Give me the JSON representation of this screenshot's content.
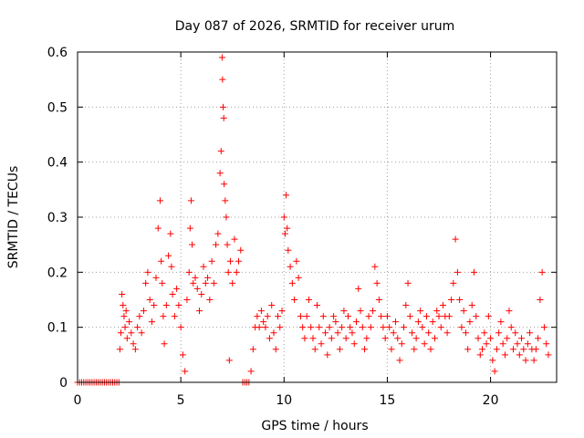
{
  "chart_data": {
    "type": "scatter",
    "title": "Day 087 of 2026, SRMTID for receiver urum",
    "xlabel": "GPS time / hours",
    "ylabel": "SRMTID / TECUs",
    "xlim": [
      0,
      23.2
    ],
    "ylim": [
      0,
      0.6
    ],
    "xticks": [
      0,
      5,
      10,
      15,
      20
    ],
    "yticks": [
      0,
      0.1,
      0.2,
      0.3,
      0.4,
      0.5,
      0.6
    ],
    "xtick_labels": [
      "0",
      "5",
      "10",
      "15",
      "20"
    ],
    "ytick_labels": [
      "0",
      "0.1",
      "0.2",
      "0.3",
      "0.4",
      "0.5",
      "0.6"
    ],
    "grid": true,
    "marker": "plus",
    "color": "#ff0000",
    "series": [
      {
        "name": "SRMTID",
        "x": [
          0.0,
          0.1,
          0.2,
          0.3,
          0.4,
          0.5,
          0.6,
          0.7,
          0.8,
          0.9,
          1.0,
          1.1,
          1.2,
          1.3,
          1.4,
          1.5,
          1.6,
          1.7,
          1.8,
          1.9,
          2.0,
          2.05,
          2.1,
          2.15,
          2.2,
          2.25,
          2.3,
          2.35,
          2.4,
          2.5,
          2.6,
          2.7,
          2.8,
          2.9,
          3.0,
          3.1,
          3.2,
          3.3,
          3.4,
          3.5,
          3.6,
          3.7,
          3.8,
          3.9,
          4.0,
          4.05,
          4.1,
          4.15,
          4.2,
          4.3,
          4.4,
          4.5,
          4.55,
          4.6,
          4.7,
          4.8,
          4.9,
          5.0,
          5.1,
          5.2,
          5.3,
          5.4,
          5.45,
          5.5,
          5.55,
          5.6,
          5.7,
          5.8,
          5.9,
          6.0,
          6.1,
          6.2,
          6.3,
          6.4,
          6.5,
          6.6,
          6.7,
          6.8,
          6.9,
          6.95,
          7.0,
          7.02,
          7.05,
          7.08,
          7.1,
          7.15,
          7.2,
          7.25,
          7.3,
          7.35,
          7.4,
          7.5,
          7.6,
          7.7,
          7.8,
          7.9,
          8.0,
          8.1,
          8.2,
          8.3,
          8.4,
          8.5,
          8.6,
          8.7,
          8.8,
          8.9,
          9.0,
          9.1,
          9.2,
          9.3,
          9.4,
          9.5,
          9.6,
          9.7,
          9.8,
          9.9,
          10.0,
          10.05,
          10.1,
          10.15,
          10.2,
          10.3,
          10.4,
          10.5,
          10.6,
          10.7,
          10.8,
          10.9,
          11.0,
          11.1,
          11.2,
          11.3,
          11.4,
          11.5,
          11.6,
          11.7,
          11.8,
          11.9,
          12.0,
          12.1,
          12.2,
          12.3,
          12.4,
          12.5,
          12.6,
          12.7,
          12.8,
          12.9,
          13.0,
          13.1,
          13.2,
          13.3,
          13.4,
          13.5,
          13.6,
          13.7,
          13.8,
          13.9,
          14.0,
          14.1,
          14.2,
          14.3,
          14.4,
          14.5,
          14.6,
          14.7,
          14.8,
          14.9,
          15.0,
          15.1,
          15.2,
          15.3,
          15.4,
          15.5,
          15.6,
          15.7,
          15.8,
          15.9,
          16.0,
          16.1,
          16.2,
          16.3,
          16.4,
          16.5,
          16.6,
          16.7,
          16.8,
          16.9,
          17.0,
          17.1,
          17.2,
          17.3,
          17.4,
          17.5,
          17.6,
          17.7,
          17.8,
          17.9,
          18.0,
          18.1,
          18.2,
          18.3,
          18.4,
          18.5,
          18.6,
          18.7,
          18.8,
          18.9,
          19.0,
          19.1,
          19.2,
          19.3,
          19.4,
          19.5,
          19.6,
          19.7,
          19.8,
          19.9,
          20.0,
          20.1,
          20.2,
          20.3,
          20.4,
          20.5,
          20.6,
          20.7,
          20.8,
          20.9,
          21.0,
          21.1,
          21.2,
          21.3,
          21.4,
          21.5,
          21.6,
          21.7,
          21.8,
          21.9,
          22.0,
          22.1,
          22.2,
          22.3,
          22.4,
          22.5,
          22.6,
          22.7,
          22.8
        ],
        "y": [
          0.0,
          0.0,
          0.0,
          0.0,
          0.0,
          0.0,
          0.0,
          0.0,
          0.0,
          0.0,
          0.0,
          0.0,
          0.0,
          0.0,
          0.0,
          0.0,
          0.0,
          0.0,
          0.0,
          0.0,
          0.0,
          0.06,
          0.09,
          0.16,
          0.14,
          0.12,
          0.1,
          0.13,
          0.08,
          0.11,
          0.09,
          0.07,
          0.06,
          0.1,
          0.12,
          0.09,
          0.13,
          0.18,
          0.2,
          0.15,
          0.11,
          0.14,
          0.19,
          0.28,
          0.33,
          0.22,
          0.18,
          0.12,
          0.07,
          0.14,
          0.23,
          0.27,
          0.21,
          0.16,
          0.12,
          0.17,
          0.14,
          0.1,
          0.05,
          0.02,
          0.15,
          0.2,
          0.28,
          0.33,
          0.25,
          0.18,
          0.19,
          0.17,
          0.13,
          0.16,
          0.21,
          0.18,
          0.19,
          0.15,
          0.22,
          0.18,
          0.25,
          0.27,
          0.38,
          0.42,
          0.59,
          0.55,
          0.5,
          0.48,
          0.36,
          0.33,
          0.3,
          0.25,
          0.2,
          0.04,
          0.22,
          0.18,
          0.26,
          0.2,
          0.22,
          0.24,
          0.0,
          0.0,
          0.0,
          0.0,
          0.02,
          0.06,
          0.1,
          0.12,
          0.1,
          0.13,
          0.11,
          0.1,
          0.12,
          0.08,
          0.14,
          0.09,
          0.06,
          0.12,
          0.1,
          0.13,
          0.3,
          0.27,
          0.34,
          0.28,
          0.24,
          0.21,
          0.18,
          0.15,
          0.22,
          0.19,
          0.12,
          0.1,
          0.08,
          0.12,
          0.15,
          0.1,
          0.08,
          0.06,
          0.14,
          0.1,
          0.07,
          0.12,
          0.09,
          0.05,
          0.1,
          0.08,
          0.12,
          0.11,
          0.09,
          0.06,
          0.1,
          0.13,
          0.08,
          0.12,
          0.1,
          0.09,
          0.07,
          0.11,
          0.17,
          0.13,
          0.1,
          0.06,
          0.08,
          0.12,
          0.1,
          0.13,
          0.21,
          0.18,
          0.15,
          0.12,
          0.1,
          0.08,
          0.12,
          0.1,
          0.06,
          0.09,
          0.11,
          0.08,
          0.04,
          0.07,
          0.1,
          0.14,
          0.18,
          0.12,
          0.09,
          0.06,
          0.08,
          0.11,
          0.13,
          0.1,
          0.07,
          0.12,
          0.09,
          0.06,
          0.11,
          0.08,
          0.13,
          0.12,
          0.1,
          0.14,
          0.12,
          0.09,
          0.12,
          0.15,
          0.18,
          0.26,
          0.2,
          0.15,
          0.1,
          0.13,
          0.09,
          0.06,
          0.11,
          0.14,
          0.2,
          0.12,
          0.08,
          0.05,
          0.06,
          0.09,
          0.07,
          0.12,
          0.08,
          0.04,
          0.02,
          0.06,
          0.09,
          0.11,
          0.07,
          0.05,
          0.08,
          0.13,
          0.1,
          0.06,
          0.09,
          0.07,
          0.05,
          0.08,
          0.06,
          0.04,
          0.07,
          0.09,
          0.06,
          0.04,
          0.06,
          0.08,
          0.15,
          0.2,
          0.1,
          0.07,
          0.05
        ]
      }
    ]
  }
}
